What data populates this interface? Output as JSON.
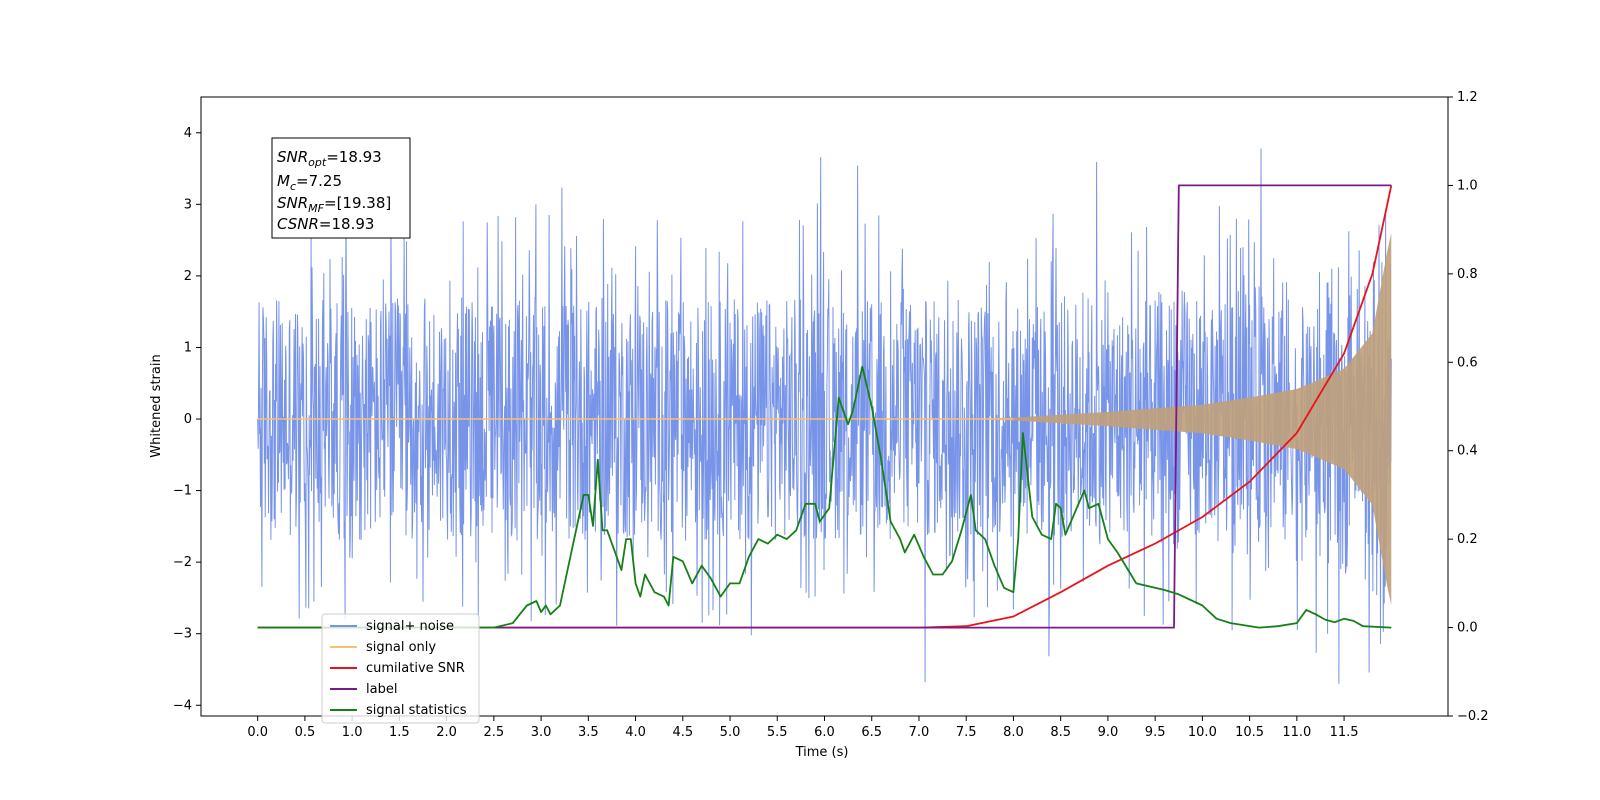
{
  "chart_data": {
    "type": "line",
    "xlabel": "Time (s)",
    "ylabel": "Whitened strain",
    "xlim": [
      -0.6,
      12.6
    ],
    "ylim": [
      -4.15,
      4.5
    ],
    "y2lim": [
      -0.2,
      1.2
    ],
    "x_ticks": [
      "0.0",
      "0.5",
      "1.0",
      "1.5",
      "2.0",
      "2.5",
      "3.0",
      "3.5",
      "4.0",
      "4.5",
      "5.0",
      "5.5",
      "6.0",
      "6.5",
      "7.0",
      "7.5",
      "8.0",
      "8.5",
      "9.0",
      "9.5",
      "10.0",
      "10.5",
      "11.0",
      "11.5"
    ],
    "y_ticks": [
      "−4",
      "−3",
      "−2",
      "−1",
      "0",
      "1",
      "2",
      "3",
      "4"
    ],
    "y2_ticks": [
      "−0.2",
      "0.0",
      "0.2",
      "0.4",
      "0.6",
      "0.8",
      "1.0",
      "1.2"
    ],
    "legend_position": "lower-left",
    "annotation": [
      {
        "base": "SNR",
        "sub": "opt",
        "value": "=18.93"
      },
      {
        "base": "M",
        "sub": "c",
        "value": "=7.25"
      },
      {
        "base": "SNR",
        "sub": "MF",
        "value": "=[19.38]"
      },
      {
        "base": "CSNR",
        "sub": "",
        "value": "=18.93"
      }
    ],
    "series": [
      {
        "name": "signal+ noise",
        "color": "#7894e8",
        "axis": "left",
        "noise_band": [
          -1.7,
          1.7
        ],
        "spike_range": [
          -3.7,
          4.1
        ],
        "duration": 12.0
      },
      {
        "name": "signal only",
        "color": "#f5c272",
        "fill_color": "#bfa07a",
        "axis": "left",
        "envelope_points": [
          [
            0.0,
            0.0
          ],
          [
            7.5,
            0.0
          ],
          [
            8.0,
            0.02
          ],
          [
            9.0,
            0.1
          ],
          [
            10.0,
            0.2
          ],
          [
            10.5,
            0.3
          ],
          [
            11.0,
            0.42
          ],
          [
            11.5,
            0.7
          ],
          [
            11.8,
            1.2
          ],
          [
            11.95,
            2.3
          ],
          [
            12.0,
            2.6
          ]
        ]
      },
      {
        "name": "cumilative SNR",
        "color": "#e8141c",
        "axis": "right",
        "points": [
          [
            0.0,
            0.0
          ],
          [
            7.0,
            0.0
          ],
          [
            7.5,
            0.003
          ],
          [
            8.0,
            0.025
          ],
          [
            8.5,
            0.08
          ],
          [
            9.0,
            0.14
          ],
          [
            9.5,
            0.19
          ],
          [
            10.0,
            0.25
          ],
          [
            10.5,
            0.33
          ],
          [
            11.0,
            0.44
          ],
          [
            11.5,
            0.62
          ],
          [
            11.8,
            0.8
          ],
          [
            11.95,
            0.95
          ],
          [
            12.0,
            1.0
          ]
        ]
      },
      {
        "name": "label",
        "color": "#7a1a86",
        "axis": "right",
        "points": [
          [
            0.0,
            0.0
          ],
          [
            9.7,
            0.0
          ],
          [
            9.75,
            1.0
          ],
          [
            12.0,
            1.0
          ]
        ]
      },
      {
        "name": "signal statistics",
        "color": "#168016",
        "axis": "right",
        "points": [
          [
            0.0,
            0.0
          ],
          [
            2.5,
            0.0
          ],
          [
            2.7,
            0.01
          ],
          [
            2.85,
            0.05
          ],
          [
            2.95,
            0.06
          ],
          [
            3.0,
            0.035
          ],
          [
            3.05,
            0.05
          ],
          [
            3.1,
            0.03
          ],
          [
            3.2,
            0.05
          ],
          [
            3.3,
            0.15
          ],
          [
            3.4,
            0.25
          ],
          [
            3.45,
            0.3
          ],
          [
            3.5,
            0.3
          ],
          [
            3.55,
            0.23
          ],
          [
            3.6,
            0.38
          ],
          [
            3.65,
            0.22
          ],
          [
            3.7,
            0.22
          ],
          [
            3.75,
            0.19
          ],
          [
            3.8,
            0.16
          ],
          [
            3.85,
            0.13
          ],
          [
            3.9,
            0.2
          ],
          [
            3.95,
            0.2
          ],
          [
            4.0,
            0.1
          ],
          [
            4.05,
            0.07
          ],
          [
            4.1,
            0.12
          ],
          [
            4.2,
            0.08
          ],
          [
            4.3,
            0.07
          ],
          [
            4.35,
            0.05
          ],
          [
            4.4,
            0.16
          ],
          [
            4.5,
            0.15
          ],
          [
            4.6,
            0.1
          ],
          [
            4.7,
            0.14
          ],
          [
            4.8,
            0.11
          ],
          [
            4.9,
            0.07
          ],
          [
            5.0,
            0.1
          ],
          [
            5.1,
            0.1
          ],
          [
            5.2,
            0.16
          ],
          [
            5.3,
            0.2
          ],
          [
            5.4,
            0.19
          ],
          [
            5.5,
            0.21
          ],
          [
            5.6,
            0.2
          ],
          [
            5.7,
            0.22
          ],
          [
            5.8,
            0.28
          ],
          [
            5.9,
            0.28
          ],
          [
            5.95,
            0.24
          ],
          [
            6.05,
            0.27
          ],
          [
            6.15,
            0.52
          ],
          [
            6.25,
            0.46
          ],
          [
            6.3,
            0.49
          ],
          [
            6.4,
            0.59
          ],
          [
            6.5,
            0.5
          ],
          [
            6.6,
            0.38
          ],
          [
            6.7,
            0.24
          ],
          [
            6.8,
            0.2
          ],
          [
            6.85,
            0.17
          ],
          [
            6.95,
            0.21
          ],
          [
            7.05,
            0.16
          ],
          [
            7.15,
            0.12
          ],
          [
            7.2,
            0.12
          ],
          [
            7.25,
            0.12
          ],
          [
            7.35,
            0.15
          ],
          [
            7.45,
            0.22
          ],
          [
            7.55,
            0.3
          ],
          [
            7.6,
            0.22
          ],
          [
            7.7,
            0.2
          ],
          [
            7.8,
            0.14
          ],
          [
            7.9,
            0.09
          ],
          [
            8.0,
            0.08
          ],
          [
            8.05,
            0.2
          ],
          [
            8.1,
            0.44
          ],
          [
            8.2,
            0.25
          ],
          [
            8.3,
            0.21
          ],
          [
            8.4,
            0.2
          ],
          [
            8.45,
            0.28
          ],
          [
            8.5,
            0.27
          ],
          [
            8.55,
            0.21
          ],
          [
            8.65,
            0.26
          ],
          [
            8.75,
            0.31
          ],
          [
            8.8,
            0.27
          ],
          [
            8.9,
            0.28
          ],
          [
            9.0,
            0.2
          ],
          [
            9.1,
            0.17
          ],
          [
            9.3,
            0.1
          ],
          [
            9.6,
            0.085
          ],
          [
            9.75,
            0.075
          ],
          [
            10.0,
            0.05
          ],
          [
            10.15,
            0.02
          ],
          [
            10.3,
            0.01
          ],
          [
            10.45,
            0.005
          ],
          [
            10.6,
            0.0
          ],
          [
            10.8,
            0.003
          ],
          [
            11.0,
            0.01
          ],
          [
            11.1,
            0.04
          ],
          [
            11.2,
            0.03
          ],
          [
            11.3,
            0.018
          ],
          [
            11.4,
            0.012
          ],
          [
            11.5,
            0.02
          ],
          [
            11.6,
            0.015
          ],
          [
            11.7,
            0.003
          ],
          [
            12.0,
            0.0
          ]
        ]
      }
    ]
  }
}
